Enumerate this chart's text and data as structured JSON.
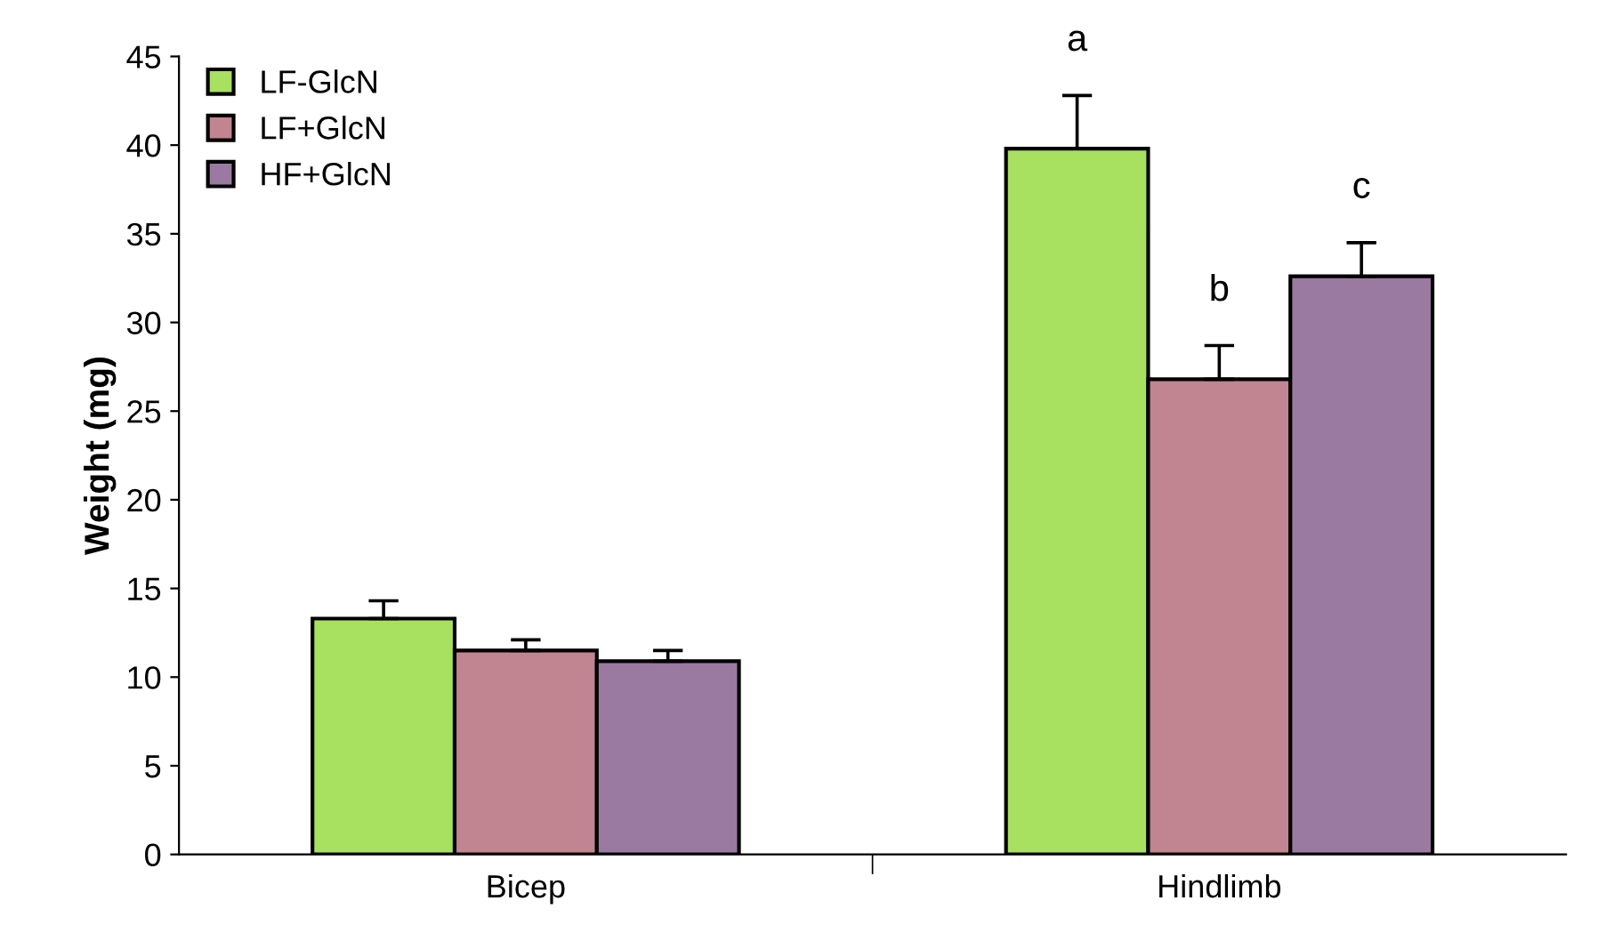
{
  "chart_data": {
    "type": "bar",
    "ylabel": "Weight (mg)",
    "categories": [
      "Bicep",
      "Hindlimb"
    ],
    "series": [
      {
        "name": "LF-GlcN",
        "color": "#a8e060",
        "values": [
          13.3,
          39.8
        ],
        "errors": [
          1.0,
          3.0
        ]
      },
      {
        "name": "LF+GlcN",
        "color": "#c08590",
        "values": [
          11.5,
          26.8
        ],
        "errors": [
          0.6,
          1.9
        ]
      },
      {
        "name": "HF+GlcN",
        "color": "#9a7aa0",
        "values": [
          10.9,
          32.6
        ],
        "errors": [
          0.6,
          1.9
        ]
      }
    ],
    "ylim": [
      0,
      45
    ],
    "yticks": [
      0,
      5,
      10,
      15,
      20,
      25,
      30,
      35,
      40,
      45
    ],
    "grid": false,
    "legend": "top left",
    "annotations": [
      "a",
      "b",
      "c"
    ]
  }
}
